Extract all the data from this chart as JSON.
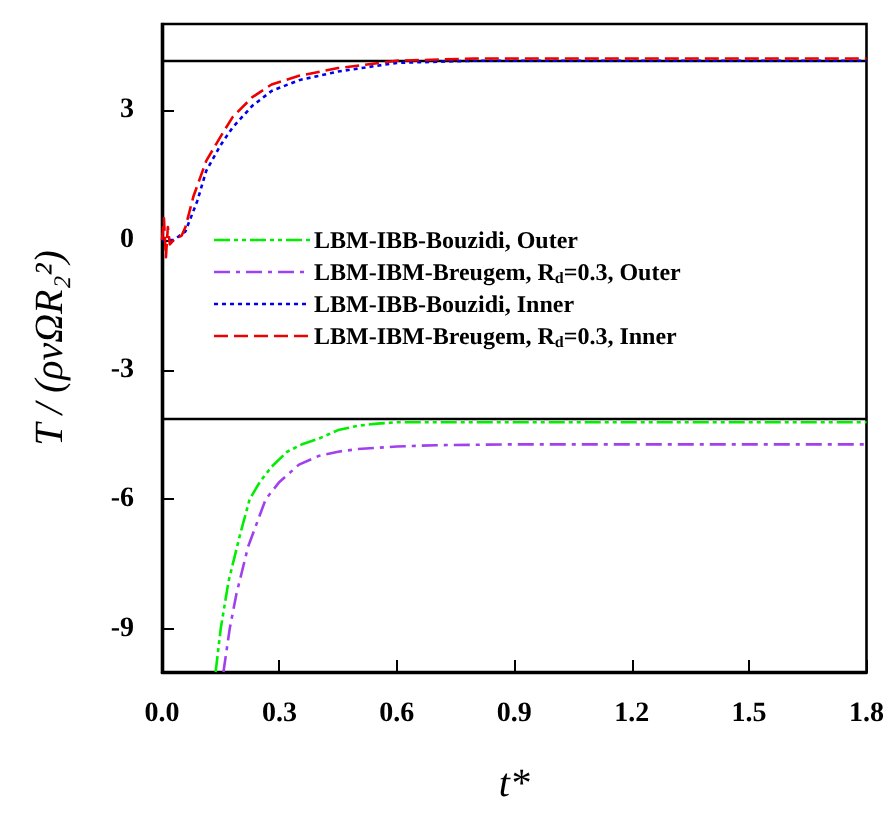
{
  "chart_data": {
    "type": "line",
    "xlabel": "t*",
    "ylabel": "T / (ρνΩR₂²)",
    "xlim": [
      0,
      1.8
    ],
    "xticks": [
      {
        "value": 0,
        "label": "0.0"
      },
      0.3,
      0.6,
      0.9,
      1.2,
      1.5,
      1.8
    ],
    "ylim": [
      -10,
      5
    ],
    "yticks": [
      -9,
      -6,
      -3,
      0,
      3
    ],
    "grid": false,
    "legend": "left",
    "marker": "none",
    "ref_lines": [
      {
        "axis": "y",
        "value": 4.15,
        "color": "#000000",
        "line_style": "solid"
      },
      {
        "axis": "y",
        "value": -4.15,
        "color": "#000000",
        "line_style": "solid"
      }
    ],
    "series": [
      {
        "name": "LBM-IBB-Bouzidi, Outer",
        "color": "#00ee00",
        "line_style": "dashdotdot",
        "x": [
          0.137,
          0.15,
          0.17,
          0.2,
          0.224,
          0.25,
          0.28,
          0.32,
          0.36,
          0.4,
          0.45,
          0.5,
          0.55,
          0.6,
          0.8,
          1.0,
          1.2,
          1.5,
          1.8
        ],
        "values": [
          -10,
          -9,
          -7.9,
          -6.8,
          -6,
          -5.6,
          -5.25,
          -4.9,
          -4.72,
          -4.6,
          -4.4,
          -4.3,
          -4.25,
          -4.22,
          -4.22,
          -4.22,
          -4.22,
          -4.22,
          -4.22
        ]
      },
      {
        "name": "LBM-IBM-Breugem, R$_{d}$=0.3, Outer",
        "color": "#a040ee",
        "line_style": "dashdot",
        "x": [
          0.157,
          0.173,
          0.19,
          0.22,
          0.265,
          0.3,
          0.35,
          0.4,
          0.45,
          0.5,
          0.6,
          0.7,
          0.9,
          1.2,
          1.5,
          1.8
        ],
        "values": [
          -10,
          -9,
          -8.2,
          -7.1,
          -6,
          -5.6,
          -5.2,
          -5.0,
          -4.9,
          -4.84,
          -4.78,
          -4.75,
          -4.73,
          -4.73,
          -4.73,
          -4.73
        ]
      },
      {
        "name": "LBM-IBB-Bouzidi, Inner",
        "color": "#0000ee",
        "line_style": "dotted",
        "x": [
          0,
          0.03,
          0.06,
          0.09,
          0.113,
          0.15,
          0.18,
          0.23,
          0.28,
          0.35,
          0.45,
          0.6,
          0.8,
          1.0,
          1.2,
          1.5,
          1.8
        ],
        "values": [
          0,
          0,
          0.2,
          0.9,
          1.6,
          2.2,
          2.6,
          3.1,
          3.45,
          3.7,
          3.9,
          4.1,
          4.15,
          4.15,
          4.15,
          4.15,
          4.15
        ]
      },
      {
        "name": "LBM-IBM-Breugem, R$_{d}$=0.3, Inner",
        "color": "#ee0000",
        "line_style": "dashed",
        "x": [
          0,
          0.005,
          0.01,
          0.015,
          0.02,
          0.03,
          0.05,
          0.06,
          0.08,
          0.113,
          0.15,
          0.18,
          0.23,
          0.28,
          0.35,
          0.45,
          0.6,
          0.8,
          1.0,
          1.2,
          1.5,
          1.8
        ],
        "values": [
          0,
          0.5,
          -0.4,
          0.3,
          -0.1,
          0,
          0.1,
          0.3,
          1.0,
          1.83,
          2.4,
          2.84,
          3.3,
          3.6,
          3.8,
          3.98,
          4.15,
          4.2,
          4.2,
          4.2,
          4.2,
          4.2
        ]
      }
    ]
  }
}
